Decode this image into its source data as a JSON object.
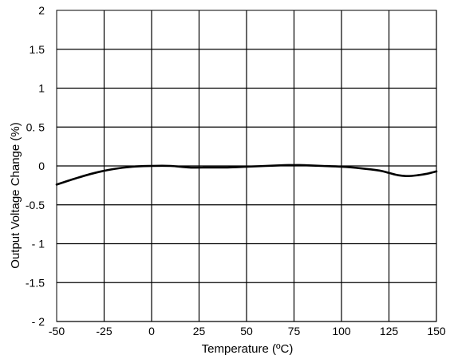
{
  "chart_data": {
    "type": "line",
    "title": "",
    "xlabel": "Temperature (ºC)",
    "ylabel": "Output Voltage Change (%)",
    "xlim": [
      -50,
      150
    ],
    "ylim": [
      -2,
      2
    ],
    "grid": true,
    "x_ticks": [
      -50,
      -25,
      0,
      25,
      50,
      75,
      100,
      125,
      150
    ],
    "x_tick_labels": [
      "-50",
      "-25",
      "0",
      "25",
      "50",
      "75",
      "100",
      "125",
      "150"
    ],
    "y_ticks": [
      2,
      1.5,
      1,
      0.5,
      0,
      -0.5,
      -1,
      -1.5,
      -2
    ],
    "y_tick_labels": [
      "2",
      "1.5",
      "1",
      "0. 5",
      "0",
      "-0.5",
      "- 1",
      "-1.5",
      "- 2"
    ],
    "series": [
      {
        "x": [
          -50,
          -40,
          -30,
          -20,
          -10,
          0,
          10,
          20,
          30,
          40,
          50,
          60,
          70,
          75,
          80,
          90,
          100,
          110,
          120,
          125,
          130,
          135,
          140,
          145,
          150
        ],
        "y": [
          -0.24,
          -0.16,
          -0.09,
          -0.04,
          -0.01,
          0.0,
          0.0,
          -0.02,
          -0.02,
          -0.02,
          -0.01,
          0.0,
          0.01,
          0.01,
          0.01,
          0.0,
          -0.01,
          -0.03,
          -0.06,
          -0.09,
          -0.12,
          -0.13,
          -0.12,
          -0.1,
          -0.07
        ]
      }
    ]
  }
}
